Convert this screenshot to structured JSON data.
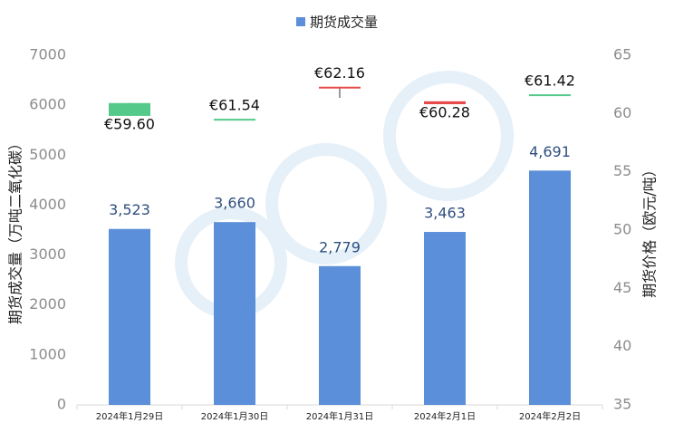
{
  "chart_data": {
    "type": "bar",
    "categories": [
      "2024年1月29日",
      "2024年1月30日",
      "2024年1月31日",
      "2024年2月1日",
      "2024年2月2日"
    ],
    "series": [
      {
        "name": "期货成交量",
        "color": "#5b8fd9",
        "values": [
          3523,
          3660,
          2779,
          3463,
          4691
        ],
        "value_labels": [
          "3,523",
          "3,660",
          "2,779",
          "3,463",
          "4,691"
        ]
      },
      {
        "type": "candlestick",
        "axis": "y2",
        "up_color": "#e84a4a",
        "down_color": "#55c98a",
        "open": [
          60.9,
          59.55,
          62.25,
          60.8,
          61.65
        ],
        "high": [
          60.9,
          59.55,
          62.3,
          61.05,
          61.65
        ],
        "low": [
          59.8,
          59.55,
          61.35,
          60.8,
          61.65
        ],
        "close": [
          59.8,
          59.55,
          62.3,
          61.05,
          61.65
        ],
        "annotations": [
          "€59.60",
          "€61.54",
          "€62.16",
          "€60.28",
          "€61.42"
        ]
      }
    ],
    "ylabel": "期货成交量（万吨二氧化碳）",
    "y2label": "期货价格（欧元/吨）",
    "ylim": [
      0,
      7000
    ],
    "yticks": [
      0,
      1000,
      2000,
      3000,
      4000,
      5000,
      6000,
      7000
    ],
    "y2lim": [
      35,
      65
    ],
    "y2ticks": [
      35,
      40,
      45,
      50,
      55,
      60,
      65
    ],
    "legend": "top"
  }
}
